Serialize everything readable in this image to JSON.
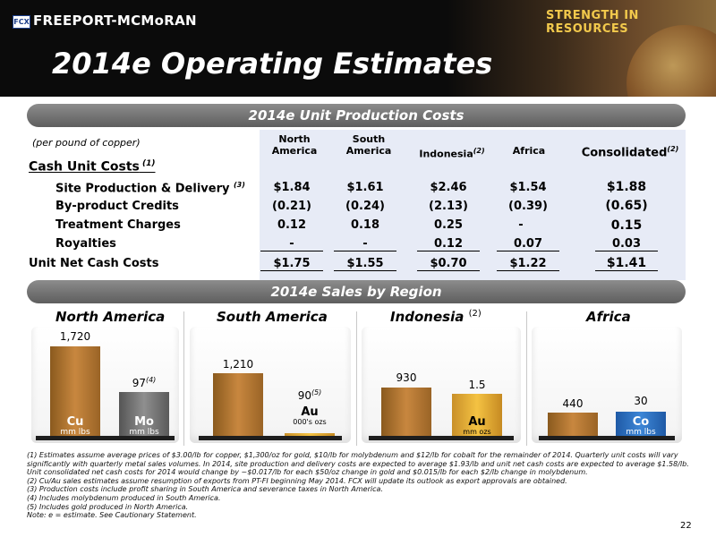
{
  "header": {
    "logo_mark": "FCX",
    "logo_text": "FREEPORT-MCMoRAN",
    "tagline": "STRENGTH IN RESOURCES",
    "title": "2014e Operating Estimates"
  },
  "unit_costs": {
    "section_title": "2014e Unit Production Costs",
    "note": "(per pound of copper)",
    "columns": [
      {
        "label": "North America",
        "line1": "North",
        "line2": "America"
      },
      {
        "label": "South America",
        "line1": "South",
        "line2": "America"
      },
      {
        "label": "Indonesia",
        "sup": "(2)"
      },
      {
        "label": "Africa"
      },
      {
        "label": "Consolidated",
        "sup": "(2)"
      }
    ],
    "cash_costs_label": "Cash Unit Costs",
    "cash_costs_sup": "(1)",
    "rows": [
      {
        "label": "Site Production & Delivery",
        "sup": "(3)",
        "values": [
          "$1.84",
          "$1.61",
          "$2.46",
          "$1.54",
          "$1.88"
        ]
      },
      {
        "label": "By-product Credits",
        "values": [
          "(0.21)",
          "(0.24)",
          "(2.13)",
          "(0.39)",
          "(0.65)"
        ]
      },
      {
        "label": "Treatment Charges",
        "values": [
          "0.12",
          "0.18",
          "0.25",
          "-",
          "0.15"
        ]
      },
      {
        "label": "Royalties",
        "values": [
          "-",
          "-",
          "0.12",
          "0.07",
          "0.03"
        ]
      }
    ],
    "total": {
      "label": "Unit Net Cash Costs",
      "values": [
        "$1.75",
        "$1.55",
        "$0.70",
        "$1.22",
        "$1.41"
      ]
    }
  },
  "sales": {
    "section_title": "2014e Sales by Region",
    "regions": [
      {
        "name": "North America",
        "sup": "",
        "bars": [
          {
            "metal": "Cu",
            "unit": "mm lbs",
            "value": "1,720",
            "sup": ""
          },
          {
            "metal": "Mo",
            "unit": "mm lbs",
            "value": "97",
            "sup": "(4)"
          }
        ]
      },
      {
        "name": "South America",
        "sup": "",
        "bars": [
          {
            "metal": "",
            "unit": "",
            "value": "1,210",
            "sup": ""
          },
          {
            "metal": "Au",
            "unit": "000's ozs",
            "value": "90",
            "sup": "(5)"
          }
        ]
      },
      {
        "name": "Indonesia",
        "sup": "(2)",
        "bars": [
          {
            "metal": "",
            "unit": "",
            "value": "930",
            "sup": ""
          },
          {
            "metal": "Au",
            "unit": "mm ozs",
            "value": "1.5",
            "sup": ""
          }
        ]
      },
      {
        "name": "Africa",
        "sup": "",
        "bars": [
          {
            "metal": "",
            "unit": "",
            "value": "440",
            "sup": ""
          },
          {
            "metal": "Co",
            "unit": "mm lbs",
            "value": "30",
            "sup": ""
          }
        ]
      }
    ]
  },
  "footnotes": [
    "(1)  Estimates assume average prices of $3.00/lb for copper, $1,300/oz for gold, $10/lb for molybdenum and $12/lb for cobalt for the remainder of 2014.  Quarterly unit costs will vary significantly with quarterly metal sales volumes. In 2014, site production and delivery costs are expected to average $1.93/lb and unit net cash costs are expected to average $1.58/lb. Unit consolidated net cash costs for 2014 would change by ~$0.017/lb for each $50/oz change in gold and $0.015/lb for each $2/lb change in molybdenum.",
    "(2)  Cu/Au sales estimates assume resumption of exports from PT-FI beginning May 2014. FCX will update its outlook as export approvals are obtained.",
    "(3)  Production costs include profit sharing in South America and severance taxes in North America.",
    "(4)  Includes molybdenum produced in South America.",
    "(5)  Includes gold produced in North America.",
    "Note: e = estimate. See Cautionary Statement."
  ],
  "page_number": "22"
}
